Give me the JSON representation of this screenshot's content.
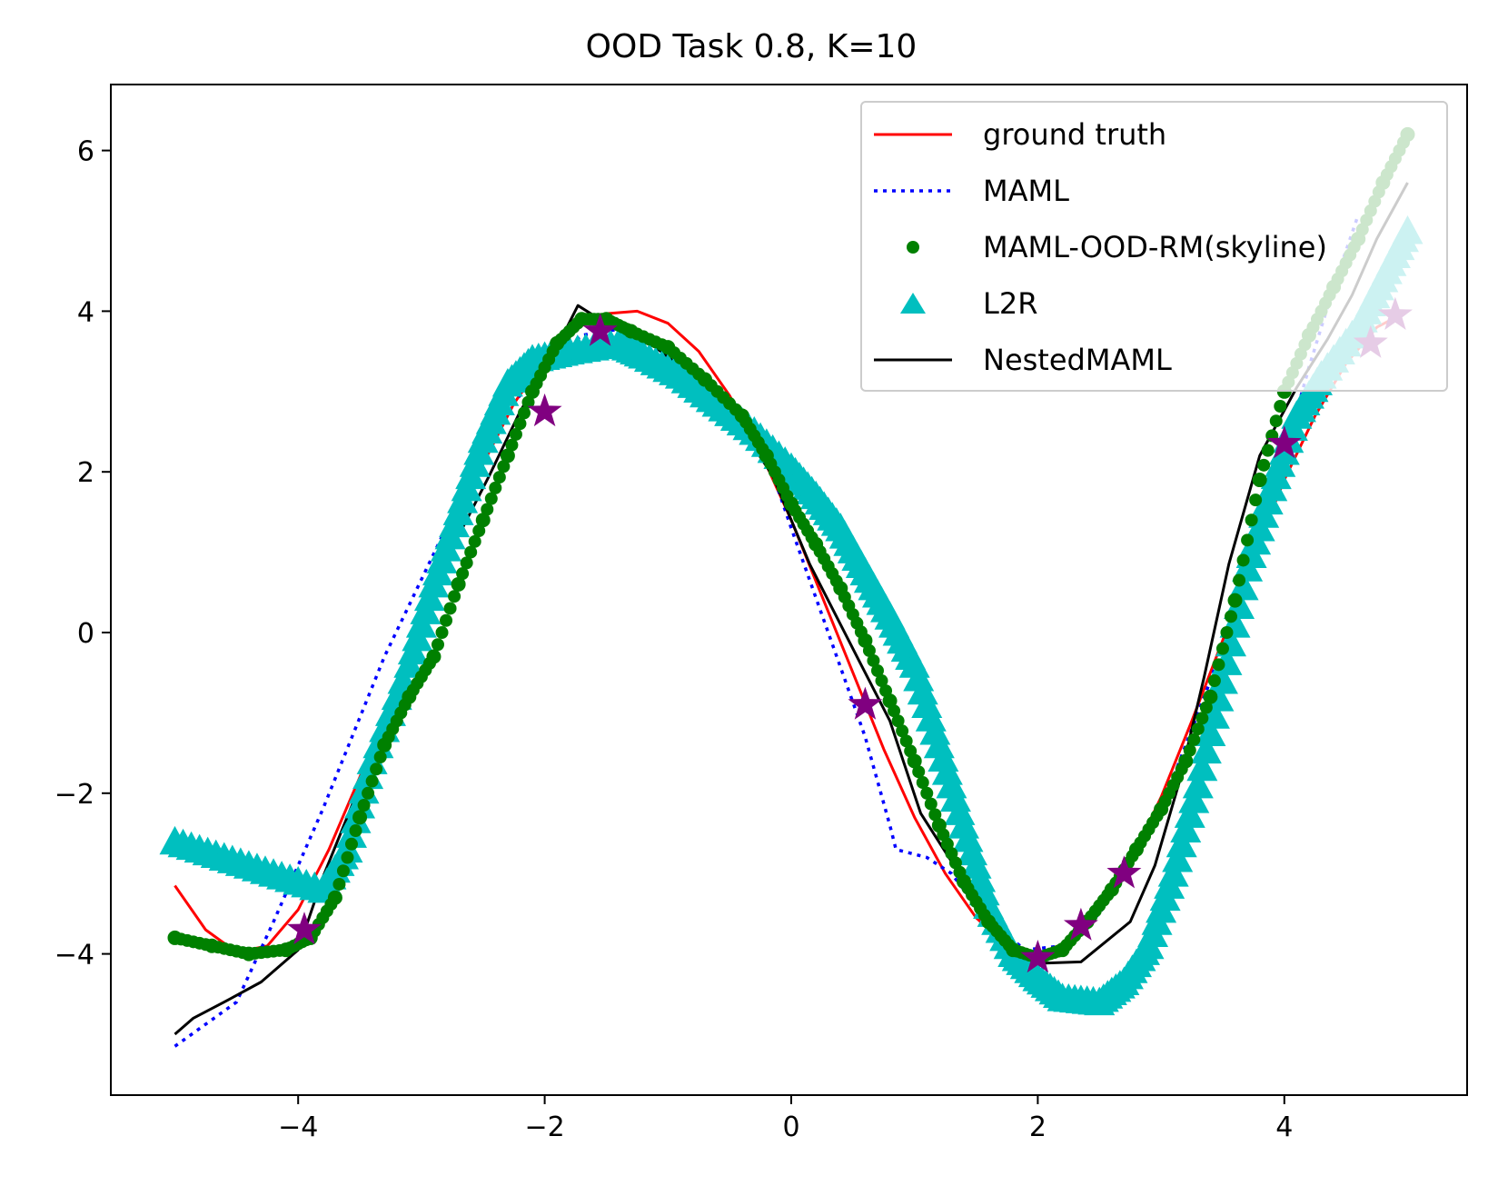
{
  "chart_data": {
    "type": "line",
    "title": "OOD Task 0.8, K=10",
    "xlabel": "",
    "ylabel": "",
    "xlim": [
      -5.5,
      5.5
    ],
    "ylim": [
      -5.7,
      6.8
    ],
    "x_ticks": [
      -4,
      -2,
      0,
      2,
      4
    ],
    "x_tick_labels": [
      "−4",
      "−2",
      "0",
      "2",
      "4"
    ],
    "y_ticks": [
      -4,
      -2,
      0,
      2,
      4,
      6
    ],
    "y_tick_labels": [
      "−4",
      "−2",
      "0",
      "2",
      "4",
      "6"
    ],
    "grid": false,
    "legend_position": "top-right",
    "series": [
      {
        "name": "ground truth",
        "style": "solid",
        "color": "#ff0000",
        "points": [
          [
            -5.0,
            -3.15
          ],
          [
            -4.75,
            -3.7
          ],
          [
            -4.5,
            -3.98
          ],
          [
            -4.25,
            -3.9
          ],
          [
            -4.0,
            -3.45
          ],
          [
            -3.75,
            -2.7
          ],
          [
            -3.5,
            -1.8
          ],
          [
            -3.25,
            -0.8
          ],
          [
            -3.0,
            0.2
          ],
          [
            -2.75,
            1.2
          ],
          [
            -2.5,
            2.1
          ],
          [
            -2.25,
            2.85
          ],
          [
            -2.0,
            3.4
          ],
          [
            -1.75,
            3.78
          ],
          [
            -1.5,
            3.97
          ],
          [
            -1.25,
            4.0
          ],
          [
            -1.0,
            3.85
          ],
          [
            -0.75,
            3.5
          ],
          [
            -0.5,
            2.95
          ],
          [
            -0.25,
            2.25
          ],
          [
            0.0,
            1.4
          ],
          [
            0.25,
            0.45
          ],
          [
            0.5,
            -0.5
          ],
          [
            0.75,
            -1.45
          ],
          [
            1.0,
            -2.3
          ],
          [
            1.25,
            -3.0
          ],
          [
            1.5,
            -3.55
          ],
          [
            1.75,
            -3.9
          ],
          [
            2.0,
            -4.0
          ],
          [
            2.25,
            -3.85
          ],
          [
            2.5,
            -3.45
          ],
          [
            2.75,
            -2.85
          ],
          [
            3.0,
            -2.05
          ],
          [
            3.25,
            -1.1
          ],
          [
            3.5,
            -0.1
          ],
          [
            3.75,
            0.95
          ],
          [
            4.0,
            1.9
          ],
          [
            4.25,
            2.7
          ],
          [
            4.5,
            3.35
          ],
          [
            4.75,
            3.8
          ],
          [
            5.0,
            4.0
          ]
        ]
      },
      {
        "name": "MAML",
        "style": "dotted",
        "color": "#0000ff",
        "points": [
          [
            -5.0,
            -5.15
          ],
          [
            -4.5,
            -4.6
          ],
          [
            -4.2,
            -3.6
          ],
          [
            -3.8,
            -2.2
          ],
          [
            -3.3,
            -0.3
          ],
          [
            -2.8,
            1.3
          ],
          [
            -2.4,
            2.6
          ],
          [
            -2.0,
            3.3
          ],
          [
            -1.7,
            3.7
          ],
          [
            -1.3,
            3.8
          ],
          [
            -0.9,
            3.4
          ],
          [
            -0.5,
            2.8
          ],
          [
            -0.2,
            2.2
          ],
          [
            0.0,
            1.3
          ],
          [
            0.3,
            0.0
          ],
          [
            0.6,
            -1.3
          ],
          [
            0.8,
            -2.4
          ],
          [
            0.85,
            -2.7
          ],
          [
            1.1,
            -2.8
          ],
          [
            1.3,
            -3.0
          ],
          [
            1.6,
            -3.6
          ],
          [
            1.9,
            -3.95
          ],
          [
            2.2,
            -3.9
          ],
          [
            2.5,
            -3.5
          ],
          [
            2.8,
            -2.7
          ],
          [
            3.1,
            -1.8
          ],
          [
            3.4,
            -0.6
          ],
          [
            3.7,
            0.7
          ],
          [
            4.0,
            2.2
          ],
          [
            4.2,
            3.3
          ],
          [
            4.4,
            4.3
          ],
          [
            4.6,
            5.2
          ]
        ]
      },
      {
        "name": "MAML-OOD-RM(skyline)",
        "style": "dots",
        "color": "#008000",
        "points": [
          [
            -5.0,
            -3.8
          ],
          [
            -4.7,
            -3.9
          ],
          [
            -4.4,
            -4.0
          ],
          [
            -4.1,
            -3.95
          ],
          [
            -3.9,
            -3.8
          ],
          [
            -3.7,
            -3.3
          ],
          [
            -3.5,
            -2.3
          ],
          [
            -3.3,
            -1.4
          ],
          [
            -3.1,
            -0.8
          ],
          [
            -2.9,
            -0.3
          ],
          [
            -2.7,
            0.6
          ],
          [
            -2.5,
            1.4
          ],
          [
            -2.3,
            2.2
          ],
          [
            -2.1,
            3.0
          ],
          [
            -1.9,
            3.6
          ],
          [
            -1.7,
            3.9
          ],
          [
            -1.5,
            3.9
          ],
          [
            -1.3,
            3.75
          ],
          [
            -1.0,
            3.55
          ],
          [
            -0.7,
            3.15
          ],
          [
            -0.4,
            2.7
          ],
          [
            -0.2,
            2.2
          ],
          [
            0.0,
            1.6
          ],
          [
            0.2,
            1.1
          ],
          [
            0.4,
            0.55
          ],
          [
            0.6,
            -0.1
          ],
          [
            0.8,
            -0.85
          ],
          [
            1.0,
            -1.6
          ],
          [
            1.2,
            -2.4
          ],
          [
            1.4,
            -3.1
          ],
          [
            1.6,
            -3.6
          ],
          [
            1.8,
            -3.95
          ],
          [
            2.0,
            -4.05
          ],
          [
            2.2,
            -3.95
          ],
          [
            2.4,
            -3.6
          ],
          [
            2.6,
            -3.2
          ],
          [
            2.8,
            -2.7
          ],
          [
            3.0,
            -2.2
          ],
          [
            3.2,
            -1.6
          ],
          [
            3.4,
            -0.8
          ],
          [
            3.6,
            0.4
          ],
          [
            3.8,
            1.9
          ],
          [
            4.0,
            3.0
          ],
          [
            4.2,
            3.7
          ],
          [
            4.4,
            4.3
          ],
          [
            4.6,
            4.9
          ],
          [
            4.8,
            5.6
          ],
          [
            5.0,
            6.2
          ]
        ]
      },
      {
        "name": "L2R",
        "style": "triangles",
        "color": "#00bfbf",
        "points": [
          [
            -5.0,
            -2.6
          ],
          [
            -4.6,
            -2.8
          ],
          [
            -4.2,
            -3.0
          ],
          [
            -3.8,
            -3.2
          ],
          [
            -3.6,
            -2.7
          ],
          [
            -3.4,
            -1.6
          ],
          [
            -3.1,
            -0.4
          ],
          [
            -2.9,
            0.6
          ],
          [
            -2.7,
            1.5
          ],
          [
            -2.5,
            2.4
          ],
          [
            -2.3,
            3.1
          ],
          [
            -2.1,
            3.4
          ],
          [
            -1.8,
            3.5
          ],
          [
            -1.4,
            3.6
          ],
          [
            -1.2,
            3.45
          ],
          [
            -0.9,
            3.2
          ],
          [
            -0.6,
            2.85
          ],
          [
            -0.3,
            2.5
          ],
          [
            0.0,
            2.05
          ],
          [
            0.2,
            1.7
          ],
          [
            0.4,
            1.3
          ],
          [
            0.6,
            0.75
          ],
          [
            0.8,
            0.2
          ],
          [
            1.0,
            -0.4
          ],
          [
            1.2,
            -1.4
          ],
          [
            1.4,
            -2.4
          ],
          [
            1.6,
            -3.4
          ],
          [
            1.8,
            -4.0
          ],
          [
            2.0,
            -4.3
          ],
          [
            2.2,
            -4.55
          ],
          [
            2.5,
            -4.6
          ],
          [
            2.7,
            -4.35
          ],
          [
            2.9,
            -3.9
          ],
          [
            3.1,
            -3.0
          ],
          [
            3.3,
            -1.9
          ],
          [
            3.5,
            -0.6
          ],
          [
            3.7,
            0.8
          ],
          [
            3.9,
            1.8
          ],
          [
            4.1,
            2.7
          ],
          [
            4.3,
            3.2
          ],
          [
            4.6,
            3.8
          ],
          [
            4.8,
            4.4
          ],
          [
            5.0,
            5.0
          ]
        ]
      },
      {
        "name": "NestedMAML",
        "style": "solid",
        "color": "#000000",
        "points": [
          [
            -5.0,
            -5.0
          ],
          [
            -4.85,
            -4.8
          ],
          [
            -4.6,
            -4.6
          ],
          [
            -4.3,
            -4.35
          ],
          [
            -4.0,
            -3.95
          ],
          [
            -3.8,
            -3.05
          ],
          [
            -3.55,
            -2.1
          ],
          [
            -3.3,
            -1.05
          ],
          [
            -3.05,
            -0.05
          ],
          [
            -2.75,
            1.05
          ],
          [
            -2.45,
            1.95
          ],
          [
            -2.2,
            2.75
          ],
          [
            -1.95,
            3.4
          ],
          [
            -1.73,
            4.07
          ],
          [
            -1.45,
            3.8
          ],
          [
            -1.1,
            3.55
          ],
          [
            -0.85,
            3.25
          ],
          [
            -0.55,
            2.85
          ],
          [
            -0.3,
            2.3
          ],
          [
            -0.15,
            1.95
          ],
          [
            0.15,
            0.85
          ],
          [
            0.35,
            0.25
          ],
          [
            0.55,
            -0.35
          ],
          [
            0.8,
            -1.1
          ],
          [
            1.05,
            -2.25
          ],
          [
            1.3,
            -2.85
          ],
          [
            1.6,
            -3.6
          ],
          [
            1.85,
            -4.05
          ],
          [
            1.95,
            -4.12
          ],
          [
            2.35,
            -4.1
          ],
          [
            2.75,
            -3.6
          ],
          [
            2.95,
            -2.9
          ],
          [
            3.15,
            -1.85
          ],
          [
            3.35,
            -0.55
          ],
          [
            3.55,
            0.85
          ],
          [
            3.8,
            2.2
          ],
          [
            4.1,
            3.05
          ],
          [
            4.35,
            3.65
          ],
          [
            4.55,
            4.2
          ],
          [
            4.75,
            4.9
          ],
          [
            5.0,
            5.6
          ]
        ]
      },
      {
        "name": "",
        "style": "stars",
        "color": "#800080",
        "points": [
          [
            -3.95,
            -3.7
          ],
          [
            -2.0,
            2.75
          ],
          [
            -1.55,
            3.75
          ],
          [
            0.6,
            -0.9
          ],
          [
            2.0,
            -4.05
          ],
          [
            2.35,
            -3.65
          ],
          [
            2.7,
            -3.0
          ],
          [
            4.0,
            2.35
          ],
          [
            4.7,
            3.6
          ],
          [
            4.9,
            3.95
          ]
        ]
      }
    ]
  }
}
